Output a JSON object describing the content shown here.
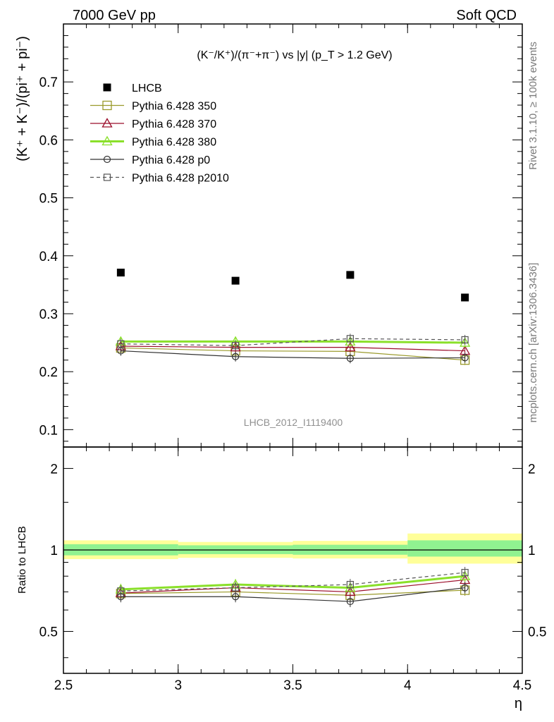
{
  "header": {
    "left": "7000 GeV pp",
    "right": "Soft QCD"
  },
  "side_labels": {
    "rivet": "Rivet 3.1.10, ≥ 100k events",
    "mcplots": "mcplots.cern.ch [arXiv:1306.3436]"
  },
  "chart_data": [
    {
      "panel": "main",
      "type": "line",
      "title": "(K⁻/K⁺)/(π⁻+π⁻) vs |y| (p_T > 1.2 GeV)",
      "xlabel": "η",
      "ylabel": "(K⁺ + K⁻)/(pi⁺ + pi⁻)",
      "watermark": "LHCB_2012_I1119400",
      "xlim": [
        2.5,
        4.5
      ],
      "ylim": [
        0.07,
        0.8
      ],
      "yticks": [
        0.1,
        0.2,
        0.3,
        0.4,
        0.5,
        0.6,
        0.7
      ],
      "ytick_labels": [
        "0.1",
        "0.2",
        "0.3",
        "0.4",
        "0.5",
        "0.6",
        "0.7"
      ],
      "x": [
        2.75,
        3.25,
        3.75,
        4.25
      ],
      "bin_edges": [
        2.5,
        3.0,
        3.5,
        4.0,
        4.5
      ],
      "legend_position": "top-left",
      "series": [
        {
          "name": "LHCB",
          "values": [
            0.371,
            0.357,
            0.367,
            0.328
          ],
          "color": "#000000",
          "marker": "filled-square",
          "line": "none"
        },
        {
          "name": "Pythia 6.428 350",
          "values": [
            0.241,
            0.236,
            0.235,
            0.22
          ],
          "color": "#9a9a2b",
          "marker": "open-square",
          "line": "solid"
        },
        {
          "name": "Pythia 6.428 370",
          "values": [
            0.244,
            0.242,
            0.242,
            0.236
          ],
          "color": "#9b0d2a",
          "marker": "open-triangle",
          "line": "solid"
        },
        {
          "name": "Pythia 6.428 380",
          "values": [
            0.252,
            0.252,
            0.252,
            0.25
          ],
          "color": "#8ae02a",
          "marker": "open-triangle",
          "line": "thick"
        },
        {
          "name": "Pythia 6.428 p0",
          "values": [
            0.236,
            0.226,
            0.223,
            0.224
          ],
          "color": "#333333",
          "marker": "open-circle",
          "line": "solid"
        },
        {
          "name": "Pythia 6.428 p2010",
          "values": [
            0.248,
            0.245,
            0.257,
            0.255
          ],
          "color": "#555555",
          "marker": "open-small-square",
          "line": "dashed"
        }
      ]
    },
    {
      "panel": "ratio",
      "type": "line",
      "ylabel": "Ratio to LHCB",
      "xlabel": "η",
      "xlim": [
        2.5,
        4.5
      ],
      "ylim": [
        0.35,
        2.4
      ],
      "yscale": "log",
      "yticks": [
        0.5,
        1,
        2
      ],
      "ytick_labels": [
        "0.5",
        "1",
        "2"
      ],
      "xticks": [
        2.5,
        3,
        3.5,
        4,
        4.5
      ],
      "xtick_labels": [
        "2.5",
        "3",
        "3.5",
        "4",
        "4.5"
      ],
      "x": [
        2.75,
        3.25,
        3.75,
        4.25
      ],
      "bands": {
        "outer_yellow": [
          [
            0.925,
            1.085
          ],
          [
            0.935,
            1.07
          ],
          [
            0.93,
            1.08
          ],
          [
            0.89,
            1.15
          ]
        ],
        "inner_green": [
          [
            0.955,
            1.05
          ],
          [
            0.965,
            1.04
          ],
          [
            0.96,
            1.045
          ],
          [
            0.945,
            1.085
          ]
        ],
        "yellow_color": "#ffff99",
        "green_color": "#90f290"
      },
      "series": [
        {
          "name": "Pythia 6.428 350",
          "values": [
            0.69,
            0.7,
            0.68,
            0.71
          ],
          "color": "#9a9a2b"
        },
        {
          "name": "Pythia 6.428 370",
          "values": [
            0.693,
            0.725,
            0.7,
            0.775
          ],
          "color": "#9b0d2a"
        },
        {
          "name": "Pythia 6.428 380",
          "values": [
            0.715,
            0.745,
            0.725,
            0.8
          ],
          "color": "#8ae02a"
        },
        {
          "name": "Pythia 6.428 p0",
          "values": [
            0.672,
            0.672,
            0.645,
            0.725
          ],
          "color": "#333333"
        },
        {
          "name": "Pythia 6.428 p2010",
          "values": [
            0.705,
            0.725,
            0.745,
            0.825
          ],
          "color": "#555555"
        }
      ]
    }
  ]
}
